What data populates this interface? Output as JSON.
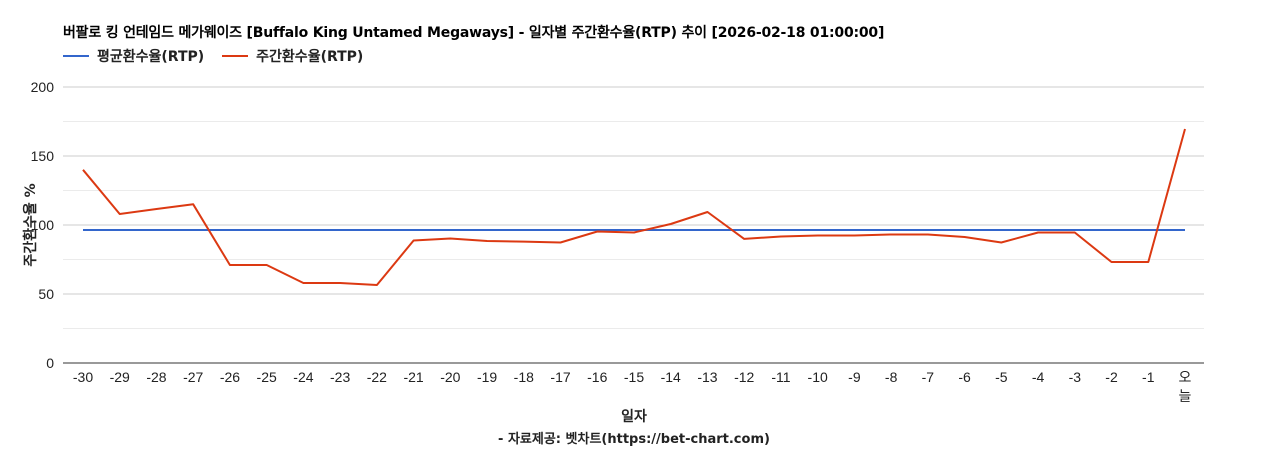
{
  "title": "버팔로 킹 언테임드 메가웨이즈 [Buffalo King Untamed Megaways] - 일자별 주간환수율(RTP) 추이 [2026-02-18 01:00:00]",
  "legend": [
    {
      "label": "평균환수율(RTP)",
      "color": "#3366cc"
    },
    {
      "label": "주간환수율(RTP)",
      "color": "#dc3912"
    }
  ],
  "xlabel": "일자",
  "ylabel": "주간환수율 %",
  "credit": "- 자료제공: 벳차트(https://bet-chart.com)",
  "chart_data": {
    "type": "line",
    "title": "버팔로 킹 언테임드 메가웨이즈 [Buffalo King Untamed Megaways] - 일자별 주간환수율(RTP) 추이 [2026-02-18 01:00:00]",
    "xlabel": "일자",
    "ylabel": "주간환수율 %",
    "ylim": [
      0,
      200
    ],
    "yticks": [
      0,
      50,
      100,
      150,
      200
    ],
    "grid": true,
    "legend_position": "top",
    "categories": [
      "-30",
      "-29",
      "-28",
      "-27",
      "-26",
      "-25",
      "-24",
      "-23",
      "-22",
      "-21",
      "-20",
      "-19",
      "-18",
      "-17",
      "-16",
      "-15",
      "-14",
      "-13",
      "-12",
      "-11",
      "-10",
      "-9",
      "-8",
      "-7",
      "-6",
      "-5",
      "-4",
      "-3",
      "-2",
      "-1",
      "오늘"
    ],
    "series": [
      {
        "name": "평균환수율(RTP)",
        "color": "#3366cc",
        "values": [
          96.4,
          96.4,
          96.4,
          96.4,
          96.4,
          96.4,
          96.4,
          96.4,
          96.4,
          96.4,
          96.4,
          96.4,
          96.4,
          96.4,
          96.4,
          96.4,
          96.4,
          96.4,
          96.4,
          96.4,
          96.4,
          96.4,
          96.4,
          96.4,
          96.4,
          96.4,
          96.4,
          96.4,
          96.4,
          96.4,
          96.4
        ]
      },
      {
        "name": "주간환수율(RTP)",
        "color": "#dc3912",
        "values": [
          140,
          108,
          111.6,
          115,
          71,
          71,
          58,
          58,
          56.5,
          88.8,
          90.2,
          88.4,
          88,
          87.3,
          95.3,
          94.6,
          100.7,
          109.4,
          89.9,
          91.7,
          92.4,
          92.4,
          93.1,
          93.1,
          91.3,
          87.3,
          94.6,
          94.6,
          73.2,
          73.2,
          169.6
        ]
      }
    ]
  }
}
